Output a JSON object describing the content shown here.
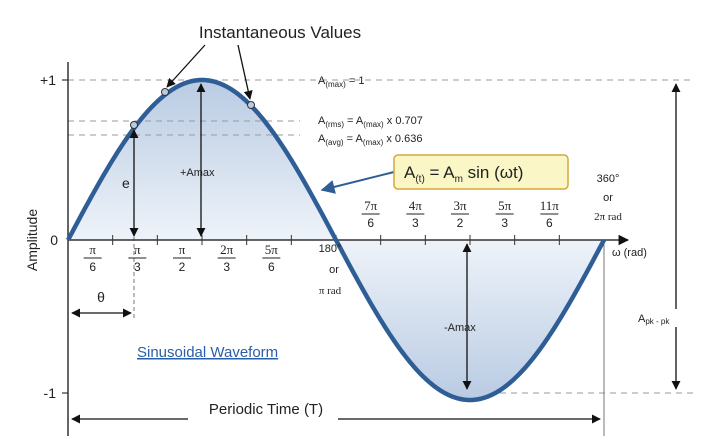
{
  "title": "Instantaneous Values",
  "y_axis": {
    "label": "Amplitude",
    "ticks": {
      "plus_one": "+1",
      "zero": "0",
      "minus_one": "-1"
    }
  },
  "x_axis": {
    "label": "ω (rad)"
  },
  "formulas": {
    "a_max": {
      "main": "A",
      "sub": "(max)",
      "rest": " = 1"
    },
    "a_rms": {
      "main": "A",
      "sub": "(rms)",
      "mid": " = A",
      "sub2": "(max)",
      "rest": " x 0.707"
    },
    "a_avg": {
      "main": "A",
      "sub": "(avg)",
      "mid": " = A",
      "sub2": "(max)",
      "rest": " x 0.636"
    }
  },
  "equation_box": {
    "a": "A",
    "a_sub": "(t)",
    "eq": " = A",
    "m_sub": "m",
    "rest": " sin (ωt)"
  },
  "angle_labels": {
    "top_ticks": [
      {
        "num": "7π",
        "den": "6"
      },
      {
        "num": "4π",
        "den": "3"
      },
      {
        "num": "3π",
        "den": "2"
      },
      {
        "num": "5π",
        "den": "3"
      },
      {
        "num": "11π",
        "den": "6"
      }
    ],
    "bottom_ticks": [
      {
        "num": "π",
        "den": "6"
      },
      {
        "num": "π",
        "den": "3"
      },
      {
        "num": "π",
        "den": "2"
      },
      {
        "num": "2π",
        "den": "3"
      },
      {
        "num": "5π",
        "den": "6"
      }
    ],
    "half_cycle": {
      "deg": "180°",
      "or": "or",
      "rad": "π rad"
    },
    "full_cycle": {
      "deg": "360°",
      "or": "or",
      "rad": "2π rad"
    }
  },
  "labels": {
    "plus_amax": "+Amax",
    "minus_amax": "-Amax",
    "e": "e",
    "theta": "θ",
    "apk_pk": {
      "main": "A",
      "sub": "pk - pk"
    },
    "waveform_name": "Sinusoidal Waveform",
    "periodic_time": "Periodic Time (T)"
  },
  "colors": {
    "wave": "#2f5e96",
    "fill_top": "#b9cbe3",
    "fill_bottom": "#eef3f9",
    "eq_box_fill": "#fbf6c6",
    "eq_box_stroke": "#d4a93a",
    "dashed": "#9a9a9a",
    "link_text": "#2a5ea8"
  }
}
